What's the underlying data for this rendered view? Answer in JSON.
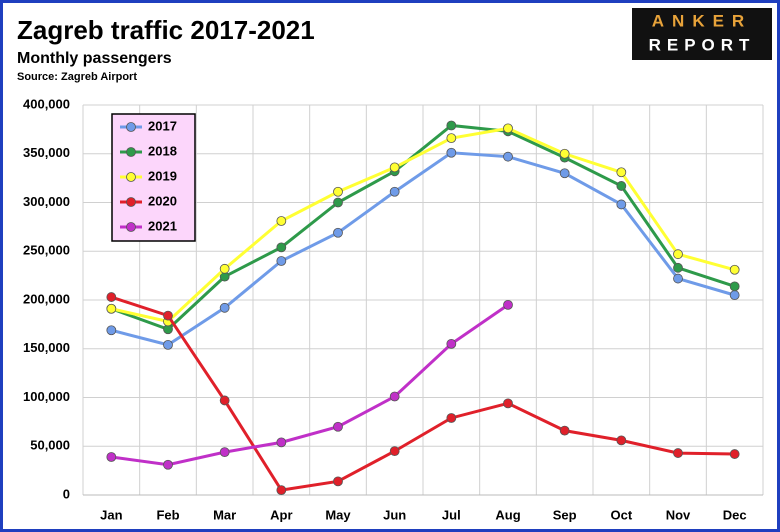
{
  "logo": [
    "ANKER",
    "REPORT"
  ],
  "chart_data": {
    "type": "line",
    "title": "Zagreb traffic 2017-2021",
    "subtitle": "Monthly passengers",
    "source": "Source: Zagreb Airport",
    "categories": [
      "Jan",
      "Feb",
      "Mar",
      "Apr",
      "May",
      "Jun",
      "Jul",
      "Aug",
      "Sep",
      "Oct",
      "Nov",
      "Dec"
    ],
    "series": [
      {
        "name": "2017",
        "color": "#6f9be8",
        "values": [
          169000,
          154000,
          192000,
          240000,
          269000,
          311000,
          351000,
          347000,
          330000,
          298000,
          222000,
          205000
        ]
      },
      {
        "name": "2018",
        "color": "#2e9a4a",
        "values": [
          191000,
          170000,
          224000,
          254000,
          300000,
          332000,
          379000,
          373000,
          346000,
          317000,
          233000,
          214000
        ]
      },
      {
        "name": "2019",
        "color": "#ffff33",
        "values": [
          191000,
          178000,
          232000,
          281000,
          311000,
          336000,
          366000,
          376000,
          350000,
          331000,
          247000,
          231000
        ]
      },
      {
        "name": "2020",
        "color": "#e0202a",
        "values": [
          203000,
          184000,
          97000,
          5000,
          14000,
          45000,
          79000,
          94000,
          66000,
          56000,
          43000,
          42000
        ]
      },
      {
        "name": "2021",
        "color": "#c030c8",
        "values": [
          39000,
          31000,
          44000,
          54000,
          70000,
          101000,
          155000,
          195000,
          null,
          null,
          null,
          null
        ]
      }
    ],
    "ylim": [
      0,
      400000
    ],
    "yticks": [
      0,
      {
        "value": 50000,
        "label": "50,000"
      },
      {
        "value": 100000,
        "label": "100,000"
      },
      {
        "value": 150000,
        "label": "150,000"
      },
      {
        "value": 200000,
        "label": "200,000"
      },
      {
        "value": 250000,
        "label": "250,000"
      },
      {
        "value": 300000,
        "label": "300,000"
      },
      {
        "value": 350000,
        "label": "350,000"
      },
      {
        "value": 400000,
        "label": "400,000"
      }
    ],
    "grid": true,
    "legend": "upper left"
  }
}
